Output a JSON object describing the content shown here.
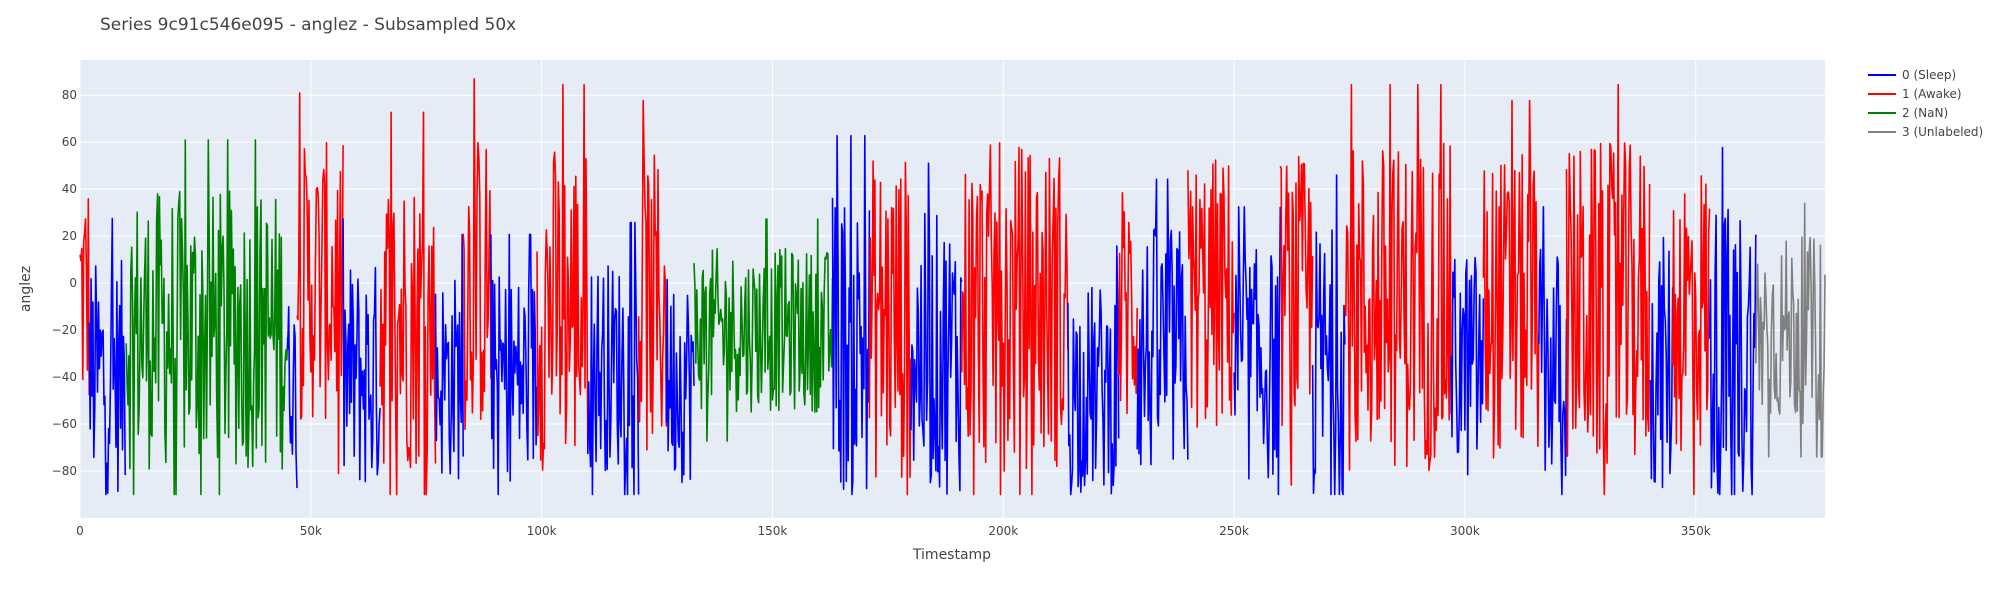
{
  "chart_data": {
    "type": "line",
    "title": "Series 9c91c546e095 - anglez - Subsampled 50x",
    "xlabel": "Timestamp",
    "ylabel": "anglez",
    "xlim": [
      0,
      378000
    ],
    "ylim": [
      -100,
      95
    ],
    "x_ticks": [
      0,
      50000,
      100000,
      150000,
      200000,
      250000,
      300000,
      350000
    ],
    "x_tick_labels": [
      "0",
      "50k",
      "100k",
      "150k",
      "200k",
      "250k",
      "300k",
      "350k"
    ],
    "y_ticks": [
      -80,
      -60,
      -40,
      -20,
      0,
      20,
      40,
      60,
      80
    ],
    "y_tick_labels": [
      "−80",
      "−60",
      "−40",
      "−20",
      "0",
      "20",
      "40",
      "60",
      "80"
    ],
    "grid": true,
    "legend_position": "top-right",
    "plot_background": "#e5ecf6",
    "sample_step": 50,
    "series": [
      {
        "name": "0 (Sleep)",
        "color": "#0000ff"
      },
      {
        "name": "1 (Awake)",
        "color": "#ff0000"
      },
      {
        "name": "2 (NaN)",
        "color": "#008000"
      },
      {
        "name": "3 (Unlabeled)",
        "color": "#808080"
      }
    ],
    "segments": [
      {
        "series": 1,
        "x_start": 0,
        "x_end": 2000,
        "center": -5,
        "amplitude": 55
      },
      {
        "series": 0,
        "x_start": 2000,
        "x_end": 10000,
        "center": -40,
        "amplitude": 50
      },
      {
        "series": 2,
        "x_start": 10000,
        "x_end": 45000,
        "center": -20,
        "amplitude": 60
      },
      {
        "series": 0,
        "x_start": 45000,
        "x_end": 47000,
        "center": -40,
        "amplitude": 35
      },
      {
        "series": 1,
        "x_start": 47000,
        "x_end": 57000,
        "center": 0,
        "amplitude": 60
      },
      {
        "series": 0,
        "x_start": 57000,
        "x_end": 65000,
        "center": -40,
        "amplitude": 50
      },
      {
        "series": 1,
        "x_start": 65000,
        "x_end": 77000,
        "center": -15,
        "amplitude": 65
      },
      {
        "series": 0,
        "x_start": 77000,
        "x_end": 83000,
        "center": -40,
        "amplitude": 45
      },
      {
        "series": 1,
        "x_start": 83000,
        "x_end": 89000,
        "center": 0,
        "amplitude": 65
      },
      {
        "series": 0,
        "x_start": 89000,
        "x_end": 99000,
        "center": -40,
        "amplitude": 45
      },
      {
        "series": 1,
        "x_start": 99000,
        "x_end": 110000,
        "center": -10,
        "amplitude": 70
      },
      {
        "series": 0,
        "x_start": 110000,
        "x_end": 121000,
        "center": -35,
        "amplitude": 45
      },
      {
        "series": 1,
        "x_start": 121000,
        "x_end": 127000,
        "center": -10,
        "amplitude": 65
      },
      {
        "series": 0,
        "x_start": 127000,
        "x_end": 133000,
        "center": -40,
        "amplitude": 45
      },
      {
        "series": 2,
        "x_start": 133000,
        "x_end": 163000,
        "center": -20,
        "amplitude": 35
      },
      {
        "series": 0,
        "x_start": 163000,
        "x_end": 171000,
        "center": -25,
        "amplitude": 65
      },
      {
        "series": 1,
        "x_start": 171000,
        "x_end": 180000,
        "center": -15,
        "amplitude": 70
      },
      {
        "series": 0,
        "x_start": 180000,
        "x_end": 191000,
        "center": -30,
        "amplitude": 60
      },
      {
        "series": 1,
        "x_start": 191000,
        "x_end": 214000,
        "center": -10,
        "amplitude": 70
      },
      {
        "series": 0,
        "x_start": 214000,
        "x_end": 225000,
        "center": -45,
        "amplitude": 45
      },
      {
        "series": 1,
        "x_start": 225000,
        "x_end": 229000,
        "center": -10,
        "amplitude": 55
      },
      {
        "series": 0,
        "x_start": 229000,
        "x_end": 240000,
        "center": -30,
        "amplitude": 55
      },
      {
        "series": 1,
        "x_start": 240000,
        "x_end": 250000,
        "center": -5,
        "amplitude": 60
      },
      {
        "series": 0,
        "x_start": 250000,
        "x_end": 260000,
        "center": -35,
        "amplitude": 50
      },
      {
        "series": 1,
        "x_start": 260000,
        "x_end": 267000,
        "center": -5,
        "amplitude": 60
      },
      {
        "series": 0,
        "x_start": 267000,
        "x_end": 274000,
        "center": -35,
        "amplitude": 60
      },
      {
        "series": 1,
        "x_start": 274000,
        "x_end": 297000,
        "center": -10,
        "amplitude": 70
      },
      {
        "series": 0,
        "x_start": 297000,
        "x_end": 304000,
        "center": -35,
        "amplitude": 50
      },
      {
        "series": 1,
        "x_start": 304000,
        "x_end": 316000,
        "center": -10,
        "amplitude": 65
      },
      {
        "series": 0,
        "x_start": 316000,
        "x_end": 322000,
        "center": -35,
        "amplitude": 50
      },
      {
        "series": 1,
        "x_start": 322000,
        "x_end": 340000,
        "center": -10,
        "amplitude": 70
      },
      {
        "series": 0,
        "x_start": 340000,
        "x_end": 345000,
        "center": -35,
        "amplitude": 55
      },
      {
        "series": 1,
        "x_start": 345000,
        "x_end": 353000,
        "center": -10,
        "amplitude": 65
      },
      {
        "series": 0,
        "x_start": 353000,
        "x_end": 363000,
        "center": -30,
        "amplitude": 65
      },
      {
        "series": 3,
        "x_start": 363000,
        "x_end": 378000,
        "center": -20,
        "amplitude": 40
      }
    ]
  }
}
